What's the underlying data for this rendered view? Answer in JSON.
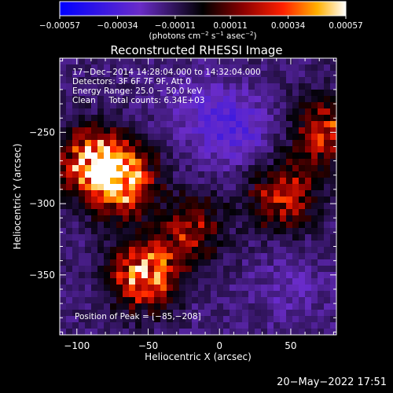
{
  "chart_data": {
    "type": "heatmap",
    "title": "Reconstructed RHESSI Image",
    "xlabel": "Heliocentric X (arcsec)",
    "ylabel": "Heliocentric Y (arcsec)",
    "xlim": [
      -112,
      82
    ],
    "ylim": [
      -392,
      -198
    ],
    "x_ticks": [
      {
        "value": -100,
        "label": "−100"
      },
      {
        "value": -50,
        "label": "−50"
      },
      {
        "value": 0,
        "label": "0"
      },
      {
        "value": 50,
        "label": "50"
      }
    ],
    "y_ticks": [
      {
        "value": -250,
        "label": "−250"
      },
      {
        "value": -300,
        "label": "−300"
      },
      {
        "value": -350,
        "label": "−350"
      }
    ],
    "colorbar": {
      "range": [
        -0.00057,
        0.00057
      ],
      "ticks": [
        {
          "value": -0.00057,
          "label": "−0.00057"
        },
        {
          "value": -0.00034,
          "label": "−0.00034"
        },
        {
          "value": -0.00011,
          "label": "−0.00011"
        },
        {
          "value": 0.00011,
          "label": "0.00011"
        },
        {
          "value": 0.00034,
          "label": "0.00034"
        },
        {
          "value": 0.00057,
          "label": "0.00057"
        }
      ],
      "unit_label_parts": [
        "(photons cm",
        "−2",
        " s",
        "−1",
        " asec",
        "−2",
        ")"
      ]
    },
    "sources": [
      {
        "x": -70,
        "y": -283,
        "peak": 0.00052
      },
      {
        "x": -90,
        "y": -270,
        "peak": 0.00036
      },
      {
        "x": -52,
        "y": -350,
        "peak": 0.00045
      },
      {
        "x": 75,
        "y": -250,
        "peak": 0.00028
      },
      {
        "x": 45,
        "y": -295,
        "peak": 0.00024
      },
      {
        "x": -20,
        "y": -318,
        "peak": 0.00018
      }
    ],
    "negative_regions": [
      {
        "x": 10,
        "y": -248,
        "depth": -0.00032
      },
      {
        "x": -20,
        "y": -228,
        "depth": -0.00022
      },
      {
        "x": 50,
        "y": -360,
        "depth": -0.00022
      },
      {
        "x": -5,
        "y": -375,
        "depth": -0.00016
      }
    ],
    "peak_position": [
      -85,
      -208
    ]
  },
  "annotations": {
    "time_range": "17−Dec−2014 14:28:04.000 to 14:32:04.000",
    "detectors": "Detectors: 3F 6F 7F 9F, Att 0",
    "energy_range": "Energy Range: 25.0 − 50.0 keV",
    "clean_counts": "Clean     Total counts: 6.34E+03",
    "peak_text": "Position of Peak = [−85,−208]"
  },
  "timestamp": "20−May−2022 17:51",
  "colors": {
    "background": "#000000",
    "text": "#ffffff"
  }
}
